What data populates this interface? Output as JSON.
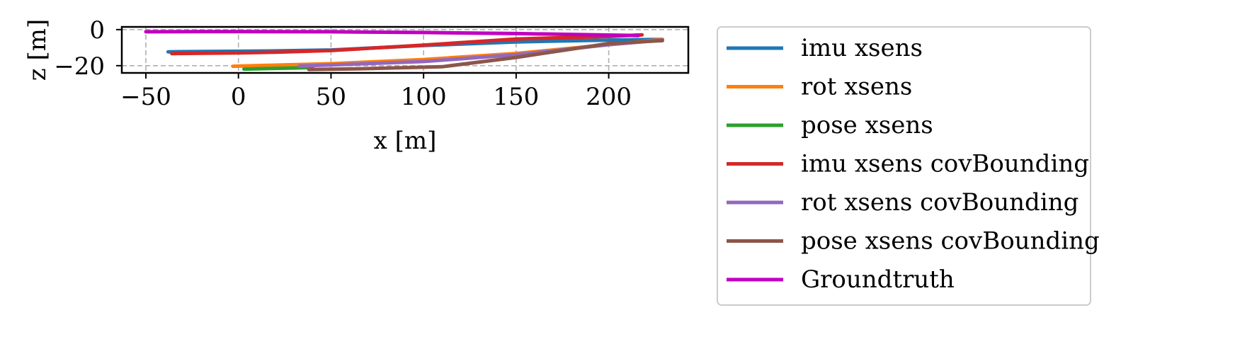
{
  "chart_data": {
    "type": "line",
    "title": "",
    "xlabel": "x [m]",
    "ylabel": "z [m]",
    "xlim": [
      -63,
      243
    ],
    "ylim": [
      -24,
      1.5
    ],
    "xticks": [
      -50,
      0,
      50,
      100,
      150,
      200
    ],
    "yticks": [
      0,
      -20
    ],
    "xtick_labels": [
      "−50",
      "0",
      "50",
      "100",
      "150",
      "200"
    ],
    "ytick_labels": [
      "0",
      "−20"
    ],
    "grid": true,
    "legend_position": "outside right",
    "series": [
      {
        "name": "imu xsens",
        "color": "#1f77b4",
        "x": [
          -38,
          -20,
          0,
          20,
          50,
          100,
          150,
          200,
          229
        ],
        "y": [
          -12.3,
          -12.1,
          -12.0,
          -11.8,
          -11.3,
          -8.8,
          -6.8,
          -5.8,
          -5.4
        ]
      },
      {
        "name": "rot xsens",
        "color": "#ff7f0e",
        "x": [
          -3,
          20,
          50,
          100,
          150,
          200,
          229
        ],
        "y": [
          -20.3,
          -19.7,
          -18.9,
          -16.6,
          -13.2,
          -8.3,
          -5.5
        ]
      },
      {
        "name": "pose xsens",
        "color": "#2ca02c",
        "x": [
          3,
          15,
          30,
          40
        ],
        "y": [
          -21.9,
          -21.6,
          -21.3,
          -21.0
        ]
      },
      {
        "name": "imu xsens covBounding",
        "color": "#d62728",
        "x": [
          -36,
          -20,
          0,
          20,
          50,
          100,
          150,
          200,
          218
        ],
        "y": [
          -13.3,
          -13.1,
          -12.9,
          -12.5,
          -11.6,
          -8.6,
          -5.2,
          -3.8,
          -2.9
        ]
      },
      {
        "name": "rot xsens covBounding",
        "color": "#9467bd",
        "x": [
          33,
          50,
          100,
          150,
          200,
          229
        ],
        "y": [
          -20.2,
          -19.6,
          -17.7,
          -13.9,
          -8.4,
          -5.8
        ]
      },
      {
        "name": "pose xsens covBounding",
        "color": "#8c564b",
        "x": [
          38,
          70,
          110,
          150,
          200,
          229
        ],
        "y": [
          -22.1,
          -21.6,
          -20.6,
          -15.4,
          -7.7,
          -6.1
        ]
      },
      {
        "name": "Groundtruth",
        "color": "#c000c0",
        "x": [
          -50,
          -20,
          0,
          50,
          100,
          150,
          200,
          216
        ],
        "y": [
          -1.2,
          -1.1,
          -1.1,
          -1.2,
          -1.6,
          -2.2,
          -3.0,
          -3.3
        ]
      }
    ]
  }
}
